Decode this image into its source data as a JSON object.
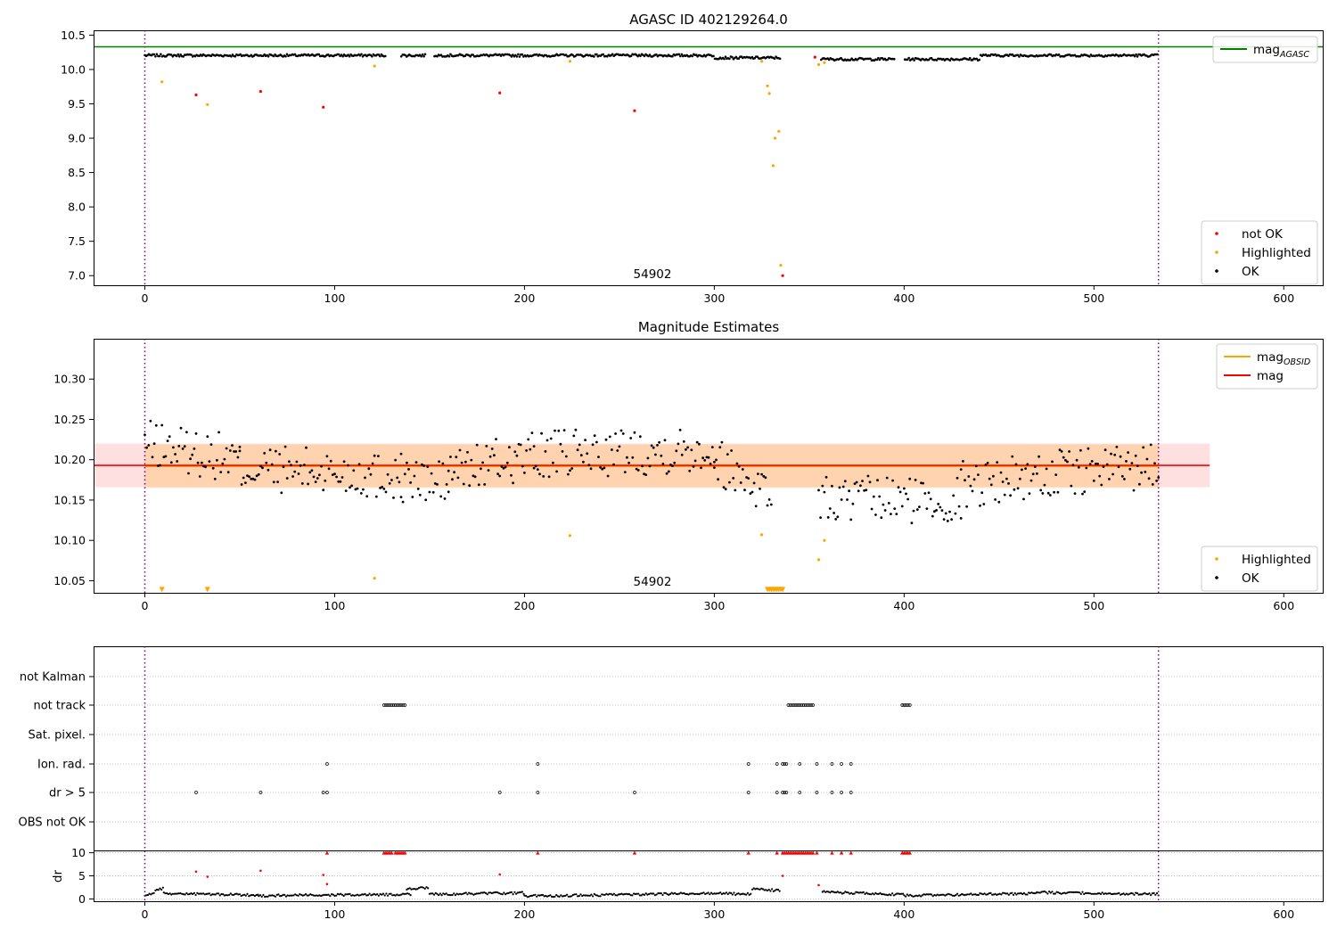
{
  "chart_data": [
    {
      "type": "scatter",
      "title": "AGASC ID 402129264.0",
      "annotation": "54902",
      "xlim": [
        -27,
        621
      ],
      "ylim": [
        6.86,
        10.57
      ],
      "xticks": [
        0,
        100,
        200,
        300,
        400,
        500,
        600
      ],
      "yticks": [
        7.0,
        7.5,
        8.0,
        8.5,
        9.0,
        9.5,
        10.0,
        10.5
      ],
      "vlines": [
        0,
        534
      ],
      "hline": {
        "name": "mag_AGASC",
        "y": 10.33,
        "color": "#008000"
      },
      "ok_band": {
        "y_start": 10.2,
        "y_end": 10.22,
        "x_range": [
          0,
          534
        ],
        "gaps": [
          [
            127,
            135
          ],
          [
            148,
            152
          ],
          [
            335,
            356
          ],
          [
            395,
            400
          ]
        ]
      },
      "series": [
        {
          "name": "not OK",
          "color": "#ff0000",
          "x": [
            27,
            61,
            94,
            187,
            258,
            336,
            353
          ],
          "y": [
            9.63,
            9.68,
            9.45,
            9.66,
            9.4,
            7.0,
            10.18
          ]
        },
        {
          "name": "Highlighted",
          "color": "#ffa500",
          "x": [
            9,
            33,
            121,
            224,
            325,
            328,
            329,
            331,
            332,
            334,
            335,
            355,
            358
          ],
          "y": [
            9.82,
            9.49,
            10.05,
            10.12,
            10.12,
            9.76,
            9.65,
            8.6,
            9.0,
            9.1,
            7.15,
            10.07,
            10.1
          ]
        }
      ],
      "legends": [
        {
          "position": "upper-right",
          "entries": [
            {
              "label": "mag",
              "sub": "AGASC",
              "kind": "line",
              "color": "#008000"
            }
          ]
        },
        {
          "position": "lower-right",
          "entries": [
            {
              "label": "not OK",
              "kind": "dot",
              "color": "#ff0000"
            },
            {
              "label": "Highlighted",
              "kind": "dot",
              "color": "#ffa500"
            },
            {
              "label": "OK",
              "kind": "dot",
              "color": "#000000"
            }
          ]
        }
      ]
    },
    {
      "type": "scatter",
      "title": "Magnitude Estimates",
      "annotation": "54902",
      "xlim": [
        -27,
        621
      ],
      "ylim": [
        10.035,
        10.35
      ],
      "xticks": [
        0,
        100,
        200,
        300,
        400,
        500,
        600
      ],
      "yticks": [
        10.05,
        10.1,
        10.15,
        10.2,
        10.25,
        10.3
      ],
      "vlines": [
        0,
        534
      ],
      "mag_line": {
        "name": "mag",
        "y": 10.193,
        "color": "#ff0000",
        "band": [
          10.166,
          10.22
        ],
        "x_range": [
          -27,
          561
        ]
      },
      "mag_obsid": {
        "name": "mag_OBSID",
        "y": 10.192,
        "color": "#ffa500",
        "band": [
          10.165,
          10.219
        ],
        "x_range": [
          0,
          534
        ]
      },
      "ok_segments": [
        {
          "x0": 0,
          "x1": 50,
          "y0": 10.22,
          "y1": 10.2
        },
        {
          "x0": 50,
          "x1": 135,
          "y0": 10.19,
          "y1": 10.18
        },
        {
          "x0": 135,
          "x1": 160,
          "y0": 10.175,
          "y1": 10.17
        },
        {
          "x0": 160,
          "x1": 205,
          "y0": 10.185,
          "y1": 10.205
        },
        {
          "x0": 205,
          "x1": 300,
          "y0": 10.205,
          "y1": 10.215
        },
        {
          "x0": 300,
          "x1": 330,
          "y0": 10.2,
          "y1": 10.16
        },
        {
          "x0": 355,
          "x1": 430,
          "y0": 10.15,
          "y1": 10.15
        },
        {
          "x0": 430,
          "x1": 534,
          "y0": 10.17,
          "y1": 10.195
        }
      ],
      "series": [
        {
          "name": "Highlighted",
          "color": "#ffa500",
          "x": [
            121,
            224,
            325,
            355,
            358
          ],
          "y": [
            10.053,
            10.106,
            10.107,
            10.076,
            10.1
          ]
        },
        {
          "name": "Highlighted (below range)",
          "color": "#ffa500",
          "marker": "triangle-down",
          "x": [
            9,
            33,
            328,
            329,
            330,
            331,
            332,
            333,
            334,
            335,
            336
          ],
          "y": [
            10.039,
            10.039,
            10.039,
            10.039,
            10.039,
            10.039,
            10.039,
            10.039,
            10.039,
            10.039,
            10.039
          ]
        }
      ],
      "legends": [
        {
          "position": "upper-right",
          "entries": [
            {
              "label": "mag",
              "sub": "OBSID",
              "kind": "line",
              "color": "#ffa500"
            },
            {
              "label": "mag",
              "kind": "line",
              "color": "#ff0000"
            }
          ]
        },
        {
          "position": "lower-right",
          "entries": [
            {
              "label": "Highlighted",
              "kind": "dot",
              "color": "#ffa500"
            },
            {
              "label": "OK",
              "kind": "dot",
              "color": "#000000"
            }
          ]
        }
      ]
    },
    {
      "type": "scatter",
      "title": "",
      "xlim": [
        -27,
        621
      ],
      "xticks": [
        0,
        100,
        200,
        300,
        400,
        500,
        600
      ],
      "vlines": [
        0,
        534
      ],
      "flag_rows": [
        "not Kalman",
        "not track",
        "Sat. pixel.",
        "Ion. rad.",
        "dr > 5",
        "OBS not OK"
      ],
      "flags": [
        {
          "row": "not track",
          "x": [
            126,
            127,
            128,
            129,
            130,
            131,
            132,
            133,
            134,
            135,
            136,
            137,
            339,
            340,
            341,
            342,
            343,
            344,
            345,
            346,
            347,
            348,
            349,
            350,
            351,
            352,
            399,
            400,
            401,
            402,
            403
          ]
        },
        {
          "row": "Ion. rad.",
          "x": [
            96,
            207,
            318,
            333,
            336,
            337,
            338,
            345,
            354,
            362,
            367,
            372
          ]
        },
        {
          "row": "dr > 5",
          "x": [
            27,
            61,
            94,
            96,
            187,
            207,
            258,
            318,
            333,
            336,
            337,
            338,
            345,
            354,
            362,
            367,
            372
          ]
        }
      ],
      "dr_ylabel": "dr",
      "dr_ylim": [
        -0.5,
        10.5
      ],
      "dr_yticks": [
        0,
        5,
        10
      ],
      "dr_outliers": {
        "color": "#ff0000",
        "x": [
          27,
          33,
          61,
          94,
          96,
          187,
          336,
          355
        ],
        "y": [
          5.9,
          4.8,
          6.1,
          5.2,
          3.2,
          5.3,
          5.0,
          3.0
        ]
      },
      "dr_clipped": {
        "color": "#ff0000",
        "y": 10,
        "x": [
          96,
          126,
          127,
          128,
          129,
          130,
          132,
          133,
          134,
          135,
          136,
          137,
          207,
          258,
          318,
          333,
          336,
          337,
          338,
          339,
          340,
          341,
          342,
          343,
          344,
          345,
          346,
          347,
          348,
          349,
          350,
          351,
          352,
          354,
          362,
          367,
          372,
          399,
          400,
          401,
          402,
          403
        ]
      },
      "dr_ok_segments": [
        {
          "x0": 0,
          "x1": 10,
          "y0": 0.5,
          "y1": 2.5
        },
        {
          "x0": 10,
          "x1": 60,
          "y0": 1.2,
          "y1": 0.8
        },
        {
          "x0": 60,
          "x1": 140,
          "y0": 0.7,
          "y1": 1.0
        },
        {
          "x0": 138,
          "x1": 150,
          "y0": 2.2,
          "y1": 2.4
        },
        {
          "x0": 150,
          "x1": 200,
          "y0": 1.0,
          "y1": 1.3
        },
        {
          "x0": 200,
          "x1": 300,
          "y0": 0.6,
          "y1": 1.2
        },
        {
          "x0": 300,
          "x1": 320,
          "y0": 1.2,
          "y1": 1.0
        },
        {
          "x0": 320,
          "x1": 335,
          "y0": 2.2,
          "y1": 1.8
        },
        {
          "x0": 357,
          "x1": 400,
          "y0": 1.5,
          "y1": 0.9
        },
        {
          "x0": 400,
          "x1": 470,
          "y0": 0.7,
          "y1": 1.2
        },
        {
          "x0": 470,
          "x1": 534,
          "y0": 1.4,
          "y1": 1.0
        }
      ]
    }
  ]
}
